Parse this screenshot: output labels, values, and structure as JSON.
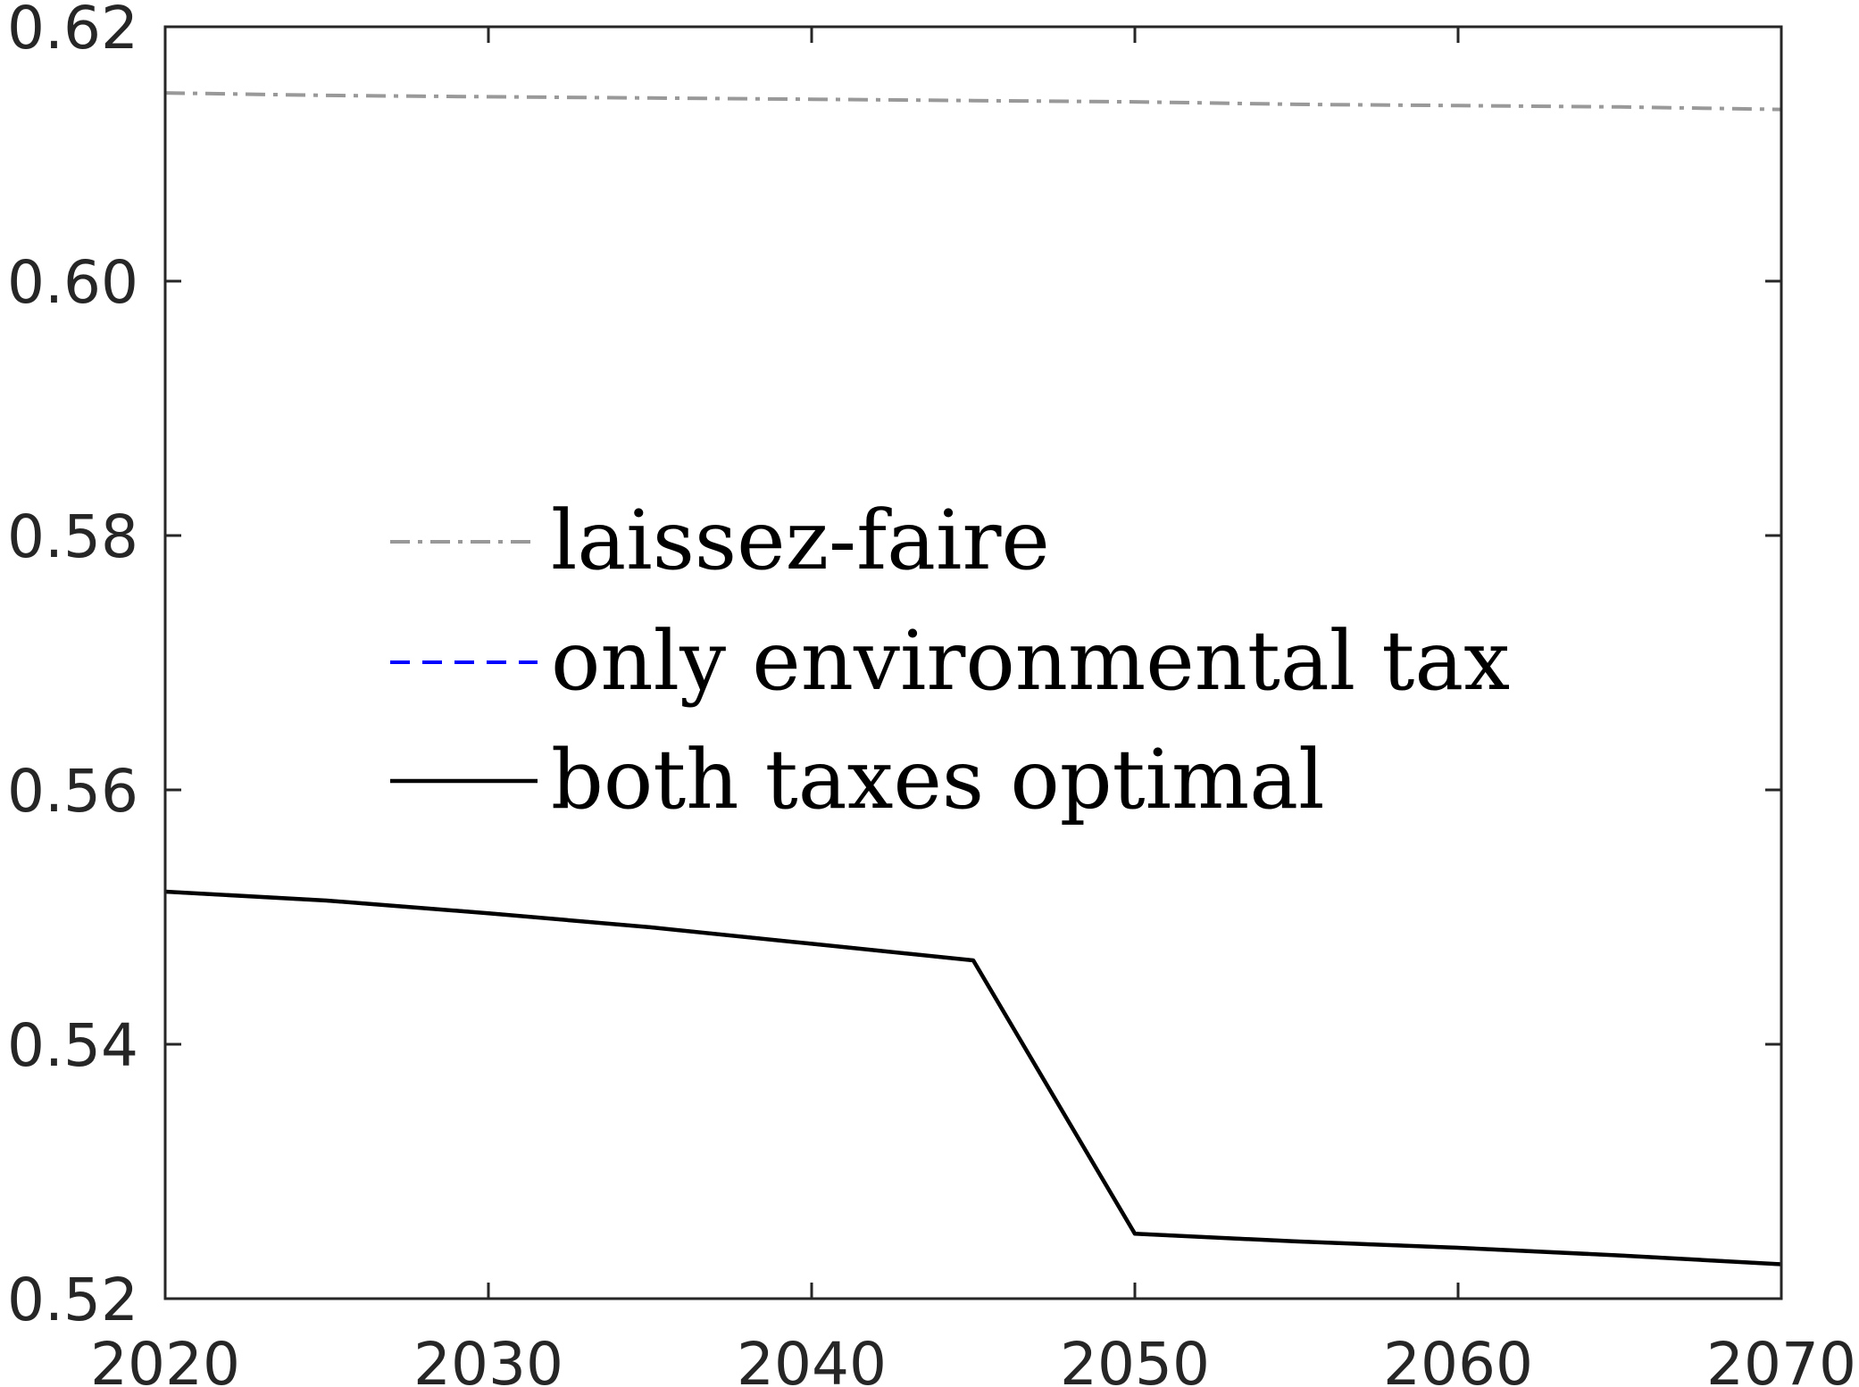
{
  "chart_data": {
    "type": "line",
    "title": "",
    "xlabel": "",
    "ylabel": "",
    "xlim": [
      2020,
      2070
    ],
    "ylim": [
      0.52,
      0.62
    ],
    "xticks": [
      2020,
      2030,
      2040,
      2050,
      2060,
      2070
    ],
    "xtick_labels": [
      "2020",
      "2030",
      "2040",
      "2050",
      "2060",
      "2070"
    ],
    "yticks": [
      0.52,
      0.54,
      0.56,
      0.58,
      0.6,
      0.62
    ],
    "ytick_labels": [
      "0.52",
      "0.54",
      "0.56",
      "0.58",
      "0.60",
      "0.62"
    ],
    "grid": false,
    "legend_position": "center-left",
    "series": [
      {
        "name": "laissez-faire",
        "color": "#999999",
        "style": "dash-dot",
        "x": [
          2020,
          2025,
          2030,
          2035,
          2040,
          2045,
          2050,
          2055,
          2060,
          2065,
          2070
        ],
        "y": [
          0.6148,
          0.6146,
          0.6145,
          0.6144,
          0.6143,
          0.6142,
          0.6141,
          0.6139,
          0.6138,
          0.6137,
          0.6135
        ]
      },
      {
        "name": "only environmental tax",
        "color": "#0000ff",
        "style": "dashed",
        "x": [
          2020,
          2025,
          2030,
          2035,
          2040,
          2045,
          2050,
          2055,
          2060,
          2065,
          2070
        ],
        "y": [
          0.552,
          0.5513,
          0.5503,
          0.5492,
          0.5479,
          0.5466,
          0.5251,
          0.5245,
          0.524,
          0.5234,
          0.5227
        ]
      },
      {
        "name": "both taxes optimal",
        "color": "#000000",
        "style": "solid",
        "x": [
          2020,
          2025,
          2030,
          2035,
          2040,
          2045,
          2050,
          2055,
          2060,
          2065,
          2070
        ],
        "y": [
          0.552,
          0.5513,
          0.5503,
          0.5492,
          0.5479,
          0.5466,
          0.5251,
          0.5245,
          0.524,
          0.5234,
          0.5227
        ]
      }
    ]
  }
}
